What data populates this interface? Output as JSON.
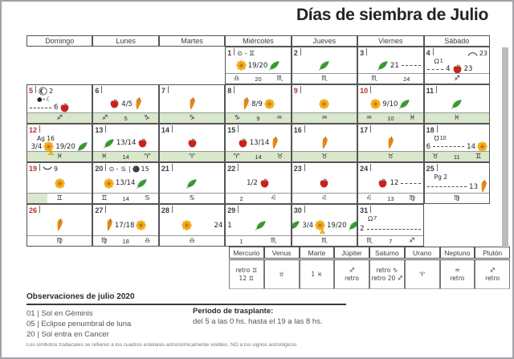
{
  "title": "Días de siembra de Julio",
  "weekdays": [
    "Domingo",
    "Lunes",
    "Martes",
    "Miércoles",
    "Jueves",
    "Viernes",
    "Sábado"
  ],
  "colors": {
    "red_day": "#b5332d",
    "transplant_band_green": "#d9e7ca",
    "grid_line": "#54545a",
    "flower_yellow": "#f1ae1e",
    "leaf_green": "#3f9e3b",
    "carrot_orange": "#e6871d",
    "apple_red": "#c92120"
  },
  "days": [
    {
      "n": "1",
      "col": 4,
      "row": 1,
      "red": false,
      "top": [
        {
          "t": "txt",
          "v": "⊙ - ♊"
        }
      ],
      "tr": [],
      "sub": [],
      "mid": [
        {
          "t": "flower"
        },
        {
          "t": "txt",
          "v": "19/20"
        },
        {
          "t": "leaf"
        }
      ],
      "bottom": [
        "♎",
        "20",
        "♏"
      ],
      "green": "none"
    },
    {
      "n": "2",
      "col": 5,
      "row": 1,
      "red": false,
      "top": [],
      "tr": [],
      "sub": [],
      "mid": [
        {
          "t": "leaf"
        }
      ],
      "bottom": [
        "♏"
      ],
      "green": "none"
    },
    {
      "n": "3",
      "col": 6,
      "row": 1,
      "red": false,
      "top": [],
      "tr": [],
      "sub": [],
      "mid": [
        {
          "t": "sp"
        },
        {
          "t": "leaf"
        },
        {
          "t": "txt",
          "v": "21"
        },
        {
          "t": "dash"
        }
      ],
      "bottom": [
        "♏",
        "24"
      ],
      "green": "none"
    },
    {
      "n": "4",
      "col": 7,
      "row": 1,
      "red": false,
      "top": [],
      "tr": [
        {
          "t": "arc-down"
        },
        {
          "t": "txt",
          "v": "23"
        }
      ],
      "sub": [
        {
          "t": "node-asc",
          "v": "1"
        }
      ],
      "mid": [
        {
          "t": "dash"
        },
        {
          "t": "txt",
          "v": "4"
        },
        {
          "t": "apple"
        },
        {
          "t": "txt",
          "v": "23"
        },
        {
          "t": "sp"
        }
      ],
      "bottom": [
        "♐"
      ],
      "green": "none"
    },
    {
      "n": "5",
      "col": 1,
      "row": 2,
      "red": true,
      "top": [
        {
          "t": "eclipse"
        },
        {
          "t": "txt",
          "v": "2"
        }
      ],
      "tr": [],
      "sub": [
        {
          "t": "txt",
          "v": "●∘☾"
        }
      ],
      "mid": [
        {
          "t": "dash"
        },
        {
          "t": "txt",
          "v": "6"
        },
        {
          "t": "apple"
        },
        {
          "t": "sp"
        }
      ],
      "bottom": [
        "♐"
      ],
      "green": "full"
    },
    {
      "n": "6",
      "col": 2,
      "row": 2,
      "red": false,
      "top": [],
      "tr": [],
      "sub": [],
      "mid": [
        {
          "t": "apple"
        },
        {
          "t": "txt",
          "v": "4/5"
        },
        {
          "t": "carrot"
        }
      ],
      "bottom": [
        "♐",
        "5",
        "♑"
      ],
      "green": "full"
    },
    {
      "n": "7",
      "col": 3,
      "row": 2,
      "red": false,
      "top": [],
      "tr": [],
      "sub": [],
      "mid": [
        {
          "t": "carrot"
        }
      ],
      "bottom": [
        "♑"
      ],
      "green": "full"
    },
    {
      "n": "8",
      "col": 4,
      "row": 2,
      "red": false,
      "top": [],
      "tr": [],
      "sub": [],
      "mid": [
        {
          "t": "carrot"
        },
        {
          "t": "txt",
          "v": "8/9"
        },
        {
          "t": "flower"
        }
      ],
      "bottom": [
        "♑",
        "9",
        "♒"
      ],
      "green": "full"
    },
    {
      "n": "9",
      "col": 5,
      "row": 2,
      "red": true,
      "top": [],
      "tr": [],
      "sub": [],
      "mid": [
        {
          "t": "flower"
        }
      ],
      "bottom": [
        "♒"
      ],
      "green": "full"
    },
    {
      "n": "10",
      "col": 6,
      "row": 2,
      "red": true,
      "top": [],
      "tr": [],
      "sub": [],
      "mid": [
        {
          "t": "flower"
        },
        {
          "t": "txt",
          "v": "9/10"
        },
        {
          "t": "leaf"
        }
      ],
      "bottom": [
        "♒",
        "10",
        "♓"
      ],
      "green": "full"
    },
    {
      "n": "11",
      "col": 7,
      "row": 2,
      "red": false,
      "top": [],
      "tr": [],
      "sub": [],
      "mid": [
        {
          "t": "leaf"
        }
      ],
      "bottom": [
        "♓"
      ],
      "green": "full"
    },
    {
      "n": "12",
      "col": 1,
      "row": 3,
      "red": true,
      "top": [],
      "tr": [],
      "sub": [
        {
          "t": "txt",
          "v": "Ag 16"
        }
      ],
      "mid": [
        {
          "t": "txt",
          "v": "3/4"
        },
        {
          "t": "flower-warn"
        },
        {
          "t": "txt",
          "v": "19/20"
        },
        {
          "t": "leaf"
        }
      ],
      "bottom": [
        "♓"
      ],
      "green": "full"
    },
    {
      "n": "13",
      "col": 2,
      "row": 3,
      "red": false,
      "top": [],
      "tr": [],
      "sub": [],
      "mid": [
        {
          "t": "leaf"
        },
        {
          "t": "txt",
          "v": "13/14"
        },
        {
          "t": "apple"
        }
      ],
      "bottom": [
        "♓",
        "14",
        "♈"
      ],
      "green": "full"
    },
    {
      "n": "14",
      "col": 3,
      "row": 3,
      "red": false,
      "top": [],
      "tr": [],
      "sub": [],
      "mid": [
        {
          "t": "apple"
        }
      ],
      "bottom": [
        "♈"
      ],
      "green": "full"
    },
    {
      "n": "15",
      "col": 4,
      "row": 3,
      "red": false,
      "top": [],
      "tr": [],
      "sub": [],
      "mid": [
        {
          "t": "apple"
        },
        {
          "t": "txt",
          "v": "13/14"
        },
        {
          "t": "carrot"
        }
      ],
      "bottom": [
        "♈",
        "14",
        "♉"
      ],
      "green": "full"
    },
    {
      "n": "16",
      "col": 5,
      "row": 3,
      "red": false,
      "top": [],
      "tr": [],
      "sub": [],
      "mid": [
        {
          "t": "carrot"
        }
      ],
      "bottom": [
        "♉"
      ],
      "green": "full"
    },
    {
      "n": "17",
      "col": 6,
      "row": 3,
      "red": false,
      "top": [],
      "tr": [],
      "sub": [],
      "mid": [
        {
          "t": "carrot"
        }
      ],
      "bottom": [
        "♉"
      ],
      "green": "full"
    },
    {
      "n": "18",
      "col": 7,
      "row": 3,
      "red": false,
      "top": [],
      "tr": [],
      "sub": [
        {
          "t": "node-desc",
          "v": "10"
        }
      ],
      "mid": [
        {
          "t": "txt",
          "v": "6"
        },
        {
          "t": "dash"
        },
        {
          "t": "txt",
          "v": "14"
        },
        {
          "t": "flower"
        }
      ],
      "bottom": [
        "♉",
        "11",
        "♊"
      ],
      "green": "full"
    },
    {
      "n": "19",
      "col": 1,
      "row": 4,
      "red": true,
      "top": [
        {
          "t": "arc-up"
        },
        {
          "t": "txt",
          "v": "9"
        }
      ],
      "tr": [],
      "sub": [],
      "mid": [
        {
          "t": "flower"
        }
      ],
      "bottom": [
        "♊"
      ],
      "green": "partial"
    },
    {
      "n": "20",
      "col": 2,
      "row": 4,
      "red": false,
      "top": [
        {
          "t": "txt",
          "v": "⊙ - ♋ |"
        },
        {
          "t": "moon-new"
        },
        {
          "t": "txt",
          "v": "15"
        }
      ],
      "tr": [],
      "sub": [],
      "mid": [
        {
          "t": "flower"
        },
        {
          "t": "txt",
          "v": "13/14"
        },
        {
          "t": "leaf"
        }
      ],
      "bottom": [
        "♊",
        "14",
        "♋"
      ],
      "green": "none"
    },
    {
      "n": "21",
      "col": 3,
      "row": 4,
      "red": false,
      "top": [],
      "tr": [],
      "sub": [],
      "mid": [
        {
          "t": "leaf"
        }
      ],
      "bottom": [
        "♋"
      ],
      "green": "none"
    },
    {
      "n": "22",
      "col": 4,
      "row": 4,
      "red": false,
      "top": [],
      "tr": [],
      "sub": [],
      "mid": [
        {
          "t": "txt",
          "v": "1/2"
        },
        {
          "t": "apple"
        }
      ],
      "bottom": [
        "2",
        "♌"
      ],
      "green": "none"
    },
    {
      "n": "23",
      "col": 5,
      "row": 4,
      "red": false,
      "top": [],
      "tr": [],
      "sub": [],
      "mid": [
        {
          "t": "apple"
        }
      ],
      "bottom": [
        "♌"
      ],
      "green": "none"
    },
    {
      "n": "24",
      "col": 6,
      "row": 4,
      "red": false,
      "top": [],
      "tr": [],
      "sub": [],
      "mid": [
        {
          "t": "sp"
        },
        {
          "t": "apple"
        },
        {
          "t": "txt",
          "v": "12"
        },
        {
          "t": "dash"
        }
      ],
      "bottom": [
        "♌",
        "13",
        "♍"
      ],
      "green": "none"
    },
    {
      "n": "25",
      "col": 7,
      "row": 4,
      "red": false,
      "top": [],
      "tr": [],
      "sub": [
        {
          "t": "txt",
          "v": "Pg 2"
        }
      ],
      "mid": [
        {
          "t": "dash"
        },
        {
          "t": "txt",
          "v": "13"
        },
        {
          "t": "carrot"
        }
      ],
      "bottom": [
        "♍"
      ],
      "green": "none"
    },
    {
      "n": "26",
      "col": 1,
      "row": 5,
      "red": true,
      "top": [],
      "tr": [],
      "sub": [],
      "mid": [
        {
          "t": "carrot"
        }
      ],
      "bottom": [
        "♍"
      ],
      "green": "none"
    },
    {
      "n": "27",
      "col": 2,
      "row": 5,
      "red": false,
      "top": [],
      "tr": [],
      "sub": [],
      "mid": [
        {
          "t": "carrot"
        },
        {
          "t": "txt",
          "v": "17/18"
        },
        {
          "t": "flower"
        }
      ],
      "bottom": [
        "♍",
        "18",
        "♎"
      ],
      "green": "none"
    },
    {
      "n": "28",
      "col": 3,
      "row": 5,
      "red": false,
      "top": [],
      "tr": [],
      "sub": [],
      "mid": [
        {
          "t": "sp"
        },
        {
          "t": "flower"
        },
        {
          "t": "sp"
        },
        {
          "t": "txt",
          "v": "24"
        }
      ],
      "bottom": [
        "♎"
      ],
      "green": "none"
    },
    {
      "n": "29",
      "col": 4,
      "row": 5,
      "red": false,
      "top": [],
      "tr": [],
      "sub": [],
      "mid": [
        {
          "t": "txt",
          "v": "1"
        },
        {
          "t": "sp"
        },
        {
          "t": "leaf"
        },
        {
          "t": "sp"
        }
      ],
      "bottom": [
        "1",
        "♏"
      ],
      "green": "none"
    },
    {
      "n": "30",
      "col": 5,
      "row": 5,
      "red": false,
      "top": [],
      "tr": [],
      "sub": [],
      "mid": [
        {
          "t": "leaf"
        },
        {
          "t": "txt",
          "v": "3/4"
        },
        {
          "t": "flower-warn"
        },
        {
          "t": "txt",
          "v": "19/20"
        },
        {
          "t": "leaf"
        }
      ],
      "bottom": [
        "♏"
      ],
      "green": "none"
    },
    {
      "n": "31",
      "col": 6,
      "row": 5,
      "red": false,
      "top": [],
      "tr": [],
      "sub": [
        {
          "t": "node-asc",
          "v": "7"
        }
      ],
      "mid": [
        {
          "t": "txt",
          "v": "2"
        },
        {
          "t": "dash"
        }
      ],
      "bottom": [
        "♏",
        "7",
        "♐"
      ],
      "green": "none"
    }
  ],
  "planets": [
    {
      "name": "Mercurio",
      "l1": "retro ♊",
      "l2": "12 ♊"
    },
    {
      "name": "Venus",
      "l1": "♉",
      "l2": ""
    },
    {
      "name": "Marte",
      "l1": "1 ♓",
      "l2": ""
    },
    {
      "name": "Júpiter",
      "l1": "♐",
      "l2": "retro"
    },
    {
      "name": "Saturno",
      "l1": "retro ♑",
      "l2": "retro 20 ♐"
    },
    {
      "name": "Urano",
      "l1": "♈",
      "l2": ""
    },
    {
      "name": "Neptuno",
      "l1": "♒",
      "l2": "retro"
    },
    {
      "name": "Plutón",
      "l1": "♐",
      "l2": "retro"
    }
  ],
  "observations": {
    "title": "Observaciones de julio 2020",
    "items": [
      "01 | Sol en Géminis",
      "05 | Eclipse penumbral de luna",
      "20 | Sol entra en Cancer"
    ],
    "transplant_title": "Periodo de trasplante:",
    "transplant_text": "del 5 a las 0 hs. hasta el 19 a las 8 hs."
  },
  "footnote": "Los símbolos zodiacales se refieren a los cuadros estelares astronómicamente visibles. NO a los signos astrológicos"
}
